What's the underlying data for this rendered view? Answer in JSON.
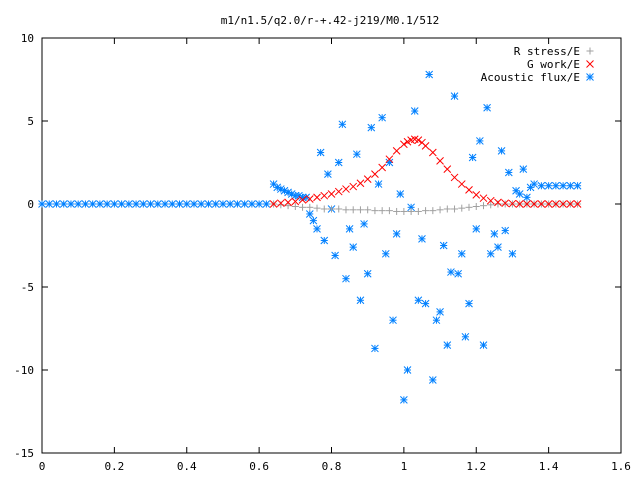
{
  "chart_data": {
    "type": "scatter",
    "title": "m1/n1.5/q2.0/r-+.42-j219/M0.1/512",
    "xlabel": "",
    "ylabel": "",
    "xlim": [
      0,
      1.6
    ],
    "ylim": [
      -15,
      10
    ],
    "x_ticks": [
      0,
      0.2,
      0.4,
      0.6,
      0.8,
      1,
      1.2,
      1.4,
      1.6
    ],
    "x_tick_labels": [
      "0",
      "0.2",
      "0.4",
      "0.6",
      "0.8",
      "1",
      "1.2",
      "1.4",
      "1.6"
    ],
    "y_ticks": [
      -15,
      -10,
      -5,
      0,
      5,
      10
    ],
    "y_tick_labels": [
      "-15",
      "-10",
      "-5",
      "0",
      "5",
      "10"
    ],
    "grid": false,
    "legend_position": "top-right",
    "series": [
      {
        "name": "R stress/E",
        "marker": "plus",
        "color": "#a0a0a0",
        "x": [
          0.64,
          0.66,
          0.68,
          0.7,
          0.72,
          0.74,
          0.76,
          0.78,
          0.8,
          0.82,
          0.84,
          0.86,
          0.88,
          0.9,
          0.92,
          0.94,
          0.96,
          0.98,
          1.0,
          1.02,
          1.04,
          1.06,
          1.08,
          1.1,
          1.12,
          1.14,
          1.16,
          1.18,
          1.2,
          1.22,
          1.24,
          1.26,
          1.28,
          1.3,
          1.32,
          1.34,
          1.36,
          1.38,
          1.4,
          1.42,
          1.44,
          1.46,
          1.48
        ],
        "y": [
          0,
          -0.05,
          -0.1,
          -0.15,
          -0.2,
          -0.2,
          -0.25,
          -0.3,
          -0.3,
          -0.3,
          -0.35,
          -0.35,
          -0.35,
          -0.35,
          -0.4,
          -0.4,
          -0.4,
          -0.45,
          -0.45,
          -0.45,
          -0.45,
          -0.4,
          -0.4,
          -0.35,
          -0.3,
          -0.3,
          -0.25,
          -0.2,
          -0.15,
          -0.1,
          -0.05,
          0,
          0,
          0,
          0,
          0,
          0,
          0,
          0,
          0,
          0,
          0,
          0
        ]
      },
      {
        "name": "G work/E",
        "marker": "cross",
        "color": "#ff0000",
        "x": [
          0.64,
          0.66,
          0.68,
          0.7,
          0.72,
          0.74,
          0.76,
          0.78,
          0.8,
          0.82,
          0.84,
          0.86,
          0.88,
          0.9,
          0.92,
          0.94,
          0.96,
          0.98,
          1.0,
          1.01,
          1.02,
          1.03,
          1.04,
          1.05,
          1.06,
          1.08,
          1.1,
          1.12,
          1.14,
          1.16,
          1.18,
          1.2,
          1.22,
          1.24,
          1.26,
          1.28,
          1.3,
          1.32,
          1.34,
          1.36,
          1.38,
          1.4,
          1.42,
          1.44,
          1.46,
          1.48
        ],
        "y": [
          0,
          0.05,
          0.1,
          0.15,
          0.25,
          0.3,
          0.4,
          0.5,
          0.6,
          0.75,
          0.9,
          1.05,
          1.25,
          1.5,
          1.8,
          2.2,
          2.7,
          3.2,
          3.6,
          3.75,
          3.85,
          3.9,
          3.85,
          3.7,
          3.5,
          3.1,
          2.6,
          2.1,
          1.6,
          1.2,
          0.85,
          0.55,
          0.35,
          0.2,
          0.1,
          0.05,
          0.02,
          0,
          0,
          0,
          0,
          0,
          0,
          0,
          0,
          0
        ]
      },
      {
        "name": "Acoustic flux/E",
        "marker": "star",
        "color": "#0080ff",
        "x": [
          0.0,
          0.02,
          0.04,
          0.06,
          0.08,
          0.1,
          0.12,
          0.14,
          0.16,
          0.18,
          0.2,
          0.22,
          0.24,
          0.26,
          0.28,
          0.3,
          0.32,
          0.34,
          0.36,
          0.38,
          0.4,
          0.42,
          0.44,
          0.46,
          0.48,
          0.5,
          0.52,
          0.54,
          0.56,
          0.58,
          0.6,
          0.62,
          0.64,
          0.65,
          0.66,
          0.67,
          0.68,
          0.69,
          0.7,
          0.71,
          0.72,
          0.73,
          0.74,
          0.75,
          0.76,
          0.77,
          0.78,
          0.79,
          0.8,
          0.81,
          0.82,
          0.83,
          0.84,
          0.85,
          0.86,
          0.87,
          0.88,
          0.89,
          0.9,
          0.91,
          0.92,
          0.93,
          0.94,
          0.95,
          0.96,
          0.97,
          0.98,
          0.99,
          1.0,
          1.01,
          1.02,
          1.03,
          1.04,
          1.05,
          1.06,
          1.07,
          1.08,
          1.09,
          1.1,
          1.11,
          1.12,
          1.13,
          1.14,
          1.15,
          1.16,
          1.17,
          1.18,
          1.19,
          1.2,
          1.21,
          1.22,
          1.23,
          1.24,
          1.25,
          1.26,
          1.27,
          1.28,
          1.29,
          1.3,
          1.31,
          1.32,
          1.33,
          1.34,
          1.35,
          1.36,
          1.38,
          1.4,
          1.42,
          1.44,
          1.46,
          1.48
        ],
        "y": [
          0,
          0,
          0,
          0,
          0,
          0,
          0,
          0,
          0,
          0,
          0,
          0,
          0,
          0,
          0,
          0,
          0,
          0,
          0,
          0,
          0,
          0,
          0,
          0,
          0,
          0,
          0,
          0,
          0,
          0,
          0,
          0,
          1.2,
          1.0,
          0.9,
          0.8,
          0.7,
          0.6,
          0.5,
          0.5,
          0.4,
          0.4,
          -0.6,
          -1.0,
          -1.5,
          3.1,
          -2.2,
          1.8,
          -0.3,
          -3.1,
          2.5,
          4.8,
          -4.5,
          -1.5,
          -2.6,
          3.0,
          -5.8,
          -1.2,
          -4.2,
          4.6,
          -8.7,
          1.2,
          5.2,
          -3.0,
          2.5,
          -7.0,
          -1.8,
          0.6,
          -11.8,
          -10.0,
          -0.2,
          5.6,
          -5.8,
          -2.1,
          -6.0,
          7.8,
          -10.6,
          -7.0,
          -6.5,
          -2.5,
          -8.5,
          -4.1,
          6.5,
          -4.2,
          -3.0,
          -8.0,
          -6.0,
          2.8,
          -1.5,
          3.8,
          -8.5,
          5.8,
          -3.0,
          -1.8,
          -2.6,
          3.2,
          -1.6,
          1.9,
          -3.0,
          0.8,
          0.6,
          2.1,
          0.4,
          1.0,
          1.2,
          1.1,
          1.1,
          1.1,
          1.1,
          1.1,
          1.1
        ]
      }
    ]
  }
}
